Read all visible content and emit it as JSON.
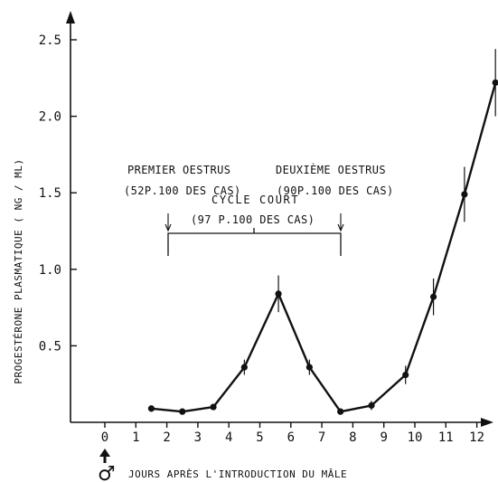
{
  "chart_data": {
    "type": "line",
    "title": "",
    "xlabel": "JOURS APRÈS L'INTRODUCTION DU MÂLE",
    "ylabel": "PROGESTÉRONE PLASMATIQUE ( NG / ML)",
    "xlim": [
      -1.3,
      13
    ],
    "ylim": [
      0,
      2.7
    ],
    "x_ticks": [
      "0",
      "1",
      "2",
      "3",
      "4",
      "5",
      "6",
      "7",
      "8",
      "9",
      "10",
      "11",
      "12"
    ],
    "y_ticks": [
      "0.5",
      "1.0",
      "1.5",
      "2.0",
      "2.5"
    ],
    "grid": false,
    "series": [
      {
        "x": [
          1.5,
          2.5,
          3.5,
          4.5,
          5.6,
          6.6,
          7.6,
          8.6,
          9.7,
          10.6,
          11.6,
          12.6
        ],
        "y": [
          0.09,
          0.07,
          0.1,
          0.36,
          0.84,
          0.36,
          0.07,
          0.11,
          0.31,
          0.82,
          1.49,
          2.22
        ],
        "error": [
          0.02,
          0.02,
          0.02,
          0.05,
          0.12,
          0.05,
          0.02,
          0.03,
          0.06,
          0.12,
          0.18,
          0.22
        ]
      }
    ],
    "male_symbol": "♂",
    "annotations": {
      "cycle_court_line1": "CYCLE COURT",
      "cycle_court_line2": "(97 P.100 DES CAS)",
      "premier_line1": "PREMIER OESTRUS",
      "premier_line2": "(52P.100 DES CAS)",
      "deuxieme_line1": "DEUXIÈME OESTRUS",
      "deuxieme_line2": "(90P.100 DES CAS)"
    }
  }
}
